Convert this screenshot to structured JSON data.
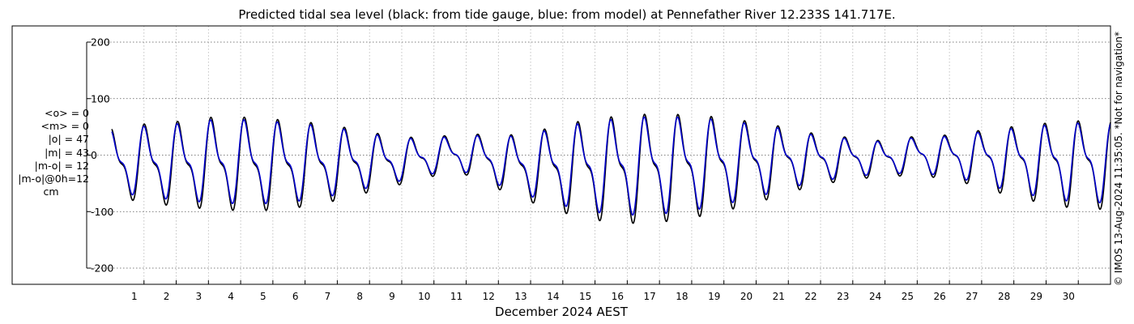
{
  "chart_data": {
    "type": "line",
    "title": "Predicted tidal sea level (black: from tide gauge, blue: from model) at Pennefather River 12.233S 141.717E.",
    "xlabel": "December 2024 AEST",
    "ylabel": "",
    "x_tick_labels": [
      "1",
      "2",
      "3",
      "4",
      "5",
      "6",
      "7",
      "8",
      "9",
      "10",
      "11",
      "12",
      "13",
      "14",
      "15",
      "16",
      "17",
      "18",
      "19",
      "20",
      "21",
      "22",
      "23",
      "24",
      "25",
      "26",
      "27",
      "28",
      "29",
      "30"
    ],
    "x_range_days": [
      0,
      31
    ],
    "ylim": [
      -230,
      230
    ],
    "y_ticks": [
      200,
      100,
      0,
      -100,
      -200
    ],
    "y_tick_labels": [
      "200",
      "100",
      "0",
      "-100",
      "-200"
    ],
    "grid": true,
    "series": [
      {
        "name": "black: from tide gauge",
        "color": "#000000"
      },
      {
        "name": "blue: from model",
        "color": "#0000cc"
      }
    ],
    "daily_high_high_cm_gauge": [
      52,
      60,
      65,
      73,
      74,
      70,
      65,
      57,
      45,
      35,
      35,
      42,
      38,
      45,
      62,
      73,
      80,
      83,
      80,
      75,
      65,
      55,
      40,
      35,
      28,
      38,
      40,
      50,
      58,
      65,
      70
    ],
    "daily_low_low_cm_gauge": [
      -80,
      -90,
      -98,
      -103,
      -106,
      -105,
      -98,
      -86,
      -70,
      -55,
      -40,
      -38,
      -64,
      -88,
      -108,
      -122,
      -128,
      -126,
      -118,
      -105,
      -90,
      -70,
      -55,
      -45,
      -40,
      -38,
      -45,
      -60,
      -78,
      -90,
      -100
    ]
  },
  "stats": {
    "mean_obs": "<o> = 0",
    "mean_model": "<m> = 0",
    "abs_obs": "|o| = 47",
    "abs_model": "|m| = 43",
    "abs_diff": "|m-o| = 12",
    "abs_diff_0h": "|m-o|@0h=12",
    "unit": "cm"
  },
  "watermark": "© IMOS 13-Aug-2024 11:35:05. *Not for navigation*"
}
